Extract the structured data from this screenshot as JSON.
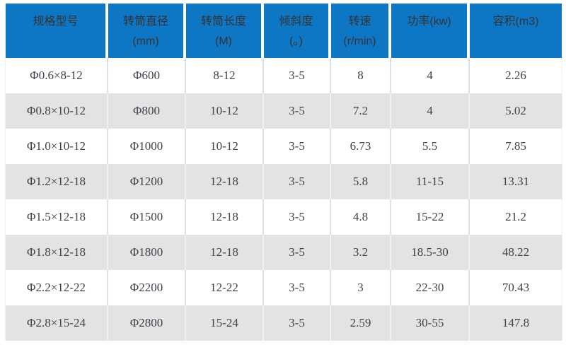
{
  "colors": {
    "header_bg": "#0d76c5",
    "header_text": "#333333",
    "body_text": "#3d434b",
    "row_bg": "#ffffff",
    "row_alt_bg": "#e3e3e3",
    "divider": "#e0e0e0"
  },
  "table": {
    "columns": [
      {
        "id": "model",
        "lines": [
          "规格型号"
        ]
      },
      {
        "id": "drum-diameter",
        "lines": [
          "转筒直径",
          "(mm)"
        ]
      },
      {
        "id": "drum-length",
        "lines": [
          "转筒长度",
          "(M)"
        ]
      },
      {
        "id": "incline",
        "lines": [
          "倾斜度",
          "(。)"
        ]
      },
      {
        "id": "speed",
        "lines": [
          "转速",
          "(r/min)"
        ]
      },
      {
        "id": "power",
        "lines": [
          "功率(kw)"
        ]
      },
      {
        "id": "volume",
        "lines": [
          "容积(m3)"
        ]
      }
    ],
    "rows": [
      [
        "Φ0.6×8-12",
        "Φ600",
        "8-12",
        "3-5",
        "8",
        "4",
        "2.26"
      ],
      [
        "Φ0.8×10-12",
        "Φ800",
        "10-12",
        "3-5",
        "7.2",
        "4",
        "5.02"
      ],
      [
        "Φ1.0×10-12",
        "Φ1000",
        "10-12",
        "3-5",
        "6.73",
        "5.5",
        "7.85"
      ],
      [
        "Φ1.2×12-18",
        "Φ1200",
        "12-18",
        "3-5",
        "5.8",
        "11-15",
        "13.31"
      ],
      [
        "Φ1.5×12-18",
        "Φ1500",
        "12-18",
        "3-5",
        "4.8",
        "15-22",
        "21.2"
      ],
      [
        "Φ1.8×12-18",
        "Φ1800",
        "12-18",
        "3-5",
        "3.2",
        "18.5-30",
        "48.22"
      ],
      [
        "Φ2.2×12-22",
        "Φ2200",
        "12-22",
        "3-5",
        "3",
        "22-30",
        "70.43"
      ],
      [
        "Φ2.8×15-24",
        "Φ2800",
        "15-24",
        "3-5",
        "2.59",
        "30-55",
        "147.8"
      ]
    ]
  }
}
